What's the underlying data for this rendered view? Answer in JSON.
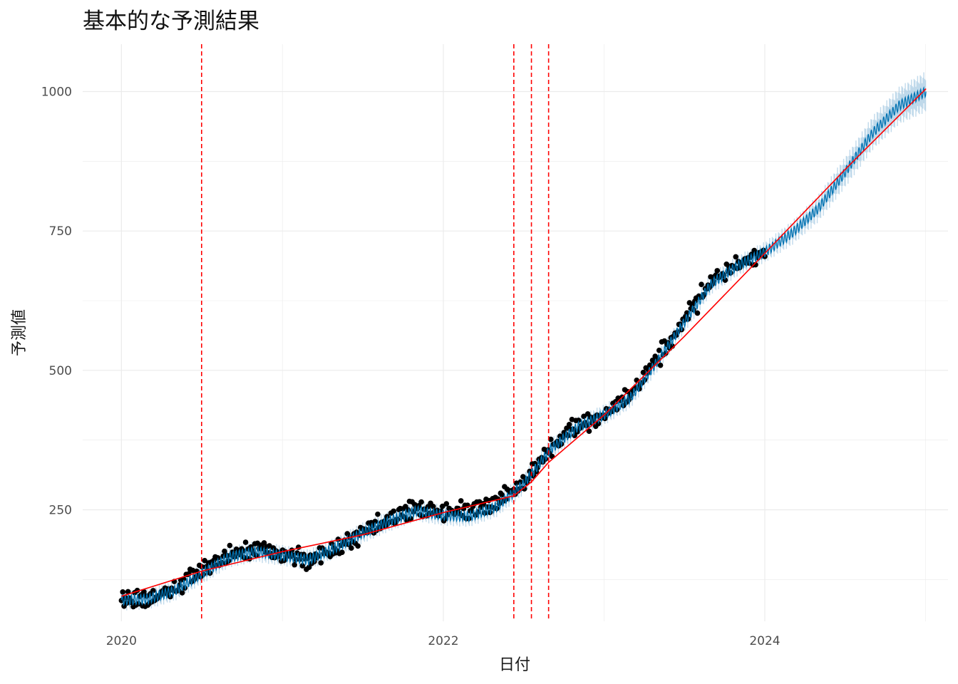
{
  "chart_data": {
    "type": "line",
    "title": "基本的な予測結果",
    "xlabel": "日付",
    "ylabel": "予測値",
    "xlim": [
      "2019-10-05",
      "2025-02-20"
    ],
    "ylim": [
      50,
      1085
    ],
    "x_ticks": [
      "2020",
      "2022",
      "2024"
    ],
    "x_tick_dates": [
      "2020-01-01",
      "2022-01-01",
      "2024-01-01"
    ],
    "y_ticks": [
      250,
      500,
      750,
      1000
    ],
    "grid": true,
    "legend": "none",
    "colors": {
      "observed": "#000000",
      "forecast": "#0072B2",
      "interval": "#A6CBE3",
      "trend": "#FF0000",
      "changepoint": "#FF0000",
      "grid": "#EBEBEB"
    },
    "changepoints": [
      "2020-07-01",
      "2022-06-10",
      "2022-07-20",
      "2022-08-28"
    ],
    "series": [
      {
        "role": "observed",
        "x": [
          "2020-01-01",
          "2020-03-01",
          "2020-05-01",
          "2020-07-01",
          "2020-09-01",
          "2020-11-01",
          "2021-01-01",
          "2021-03-01",
          "2021-05-01",
          "2021-07-01",
          "2021-09-01",
          "2021-11-01",
          "2022-01-01",
          "2022-03-01",
          "2022-05-01",
          "2022-07-01",
          "2022-09-01",
          "2022-11-01",
          "2023-01-01",
          "2023-03-01",
          "2023-05-01",
          "2023-07-01",
          "2023-09-01",
          "2023-11-01",
          "2024-01-01"
        ],
        "y": [
          90,
          92,
          108,
          140,
          170,
          178,
          170,
          158,
          180,
          210,
          232,
          252,
          245,
          248,
          262,
          300,
          360,
          400,
          420,
          455,
          520,
          590,
          660,
          690,
          710
        ]
      },
      {
        "role": "forecast",
        "x": [
          "2020-01-01",
          "2020-03-01",
          "2020-05-01",
          "2020-07-01",
          "2020-09-01",
          "2020-11-01",
          "2021-01-01",
          "2021-03-01",
          "2021-05-01",
          "2021-07-01",
          "2021-09-01",
          "2021-11-01",
          "2022-01-01",
          "2022-03-01",
          "2022-05-01",
          "2022-07-01",
          "2022-09-01",
          "2022-11-01",
          "2023-01-01",
          "2023-03-01",
          "2023-05-01",
          "2023-07-01",
          "2023-09-01",
          "2023-11-01",
          "2024-01-01",
          "2024-03-01",
          "2024-05-01",
          "2024-07-01",
          "2024-09-01",
          "2024-11-01",
          "2025-01-01"
        ],
        "y": [
          88,
          90,
          105,
          135,
          165,
          175,
          168,
          160,
          182,
          208,
          230,
          248,
          240,
          238,
          255,
          295,
          358,
          398,
          420,
          450,
          515,
          585,
          655,
          688,
          712,
          745,
          790,
          855,
          925,
          975,
          1000
        ]
      },
      {
        "role": "trend",
        "x": [
          "2020-01-01",
          "2020-07-01",
          "2021-01-01",
          "2021-07-01",
          "2022-01-01",
          "2022-06-10",
          "2022-07-20",
          "2022-08-28",
          "2023-01-01",
          "2023-07-01",
          "2024-01-01",
          "2024-07-01",
          "2025-01-01"
        ],
        "y": [
          95,
          140,
          175,
          205,
          245,
          275,
          300,
          335,
          420,
          560,
          710,
          860,
          1005
        ]
      }
    ]
  }
}
